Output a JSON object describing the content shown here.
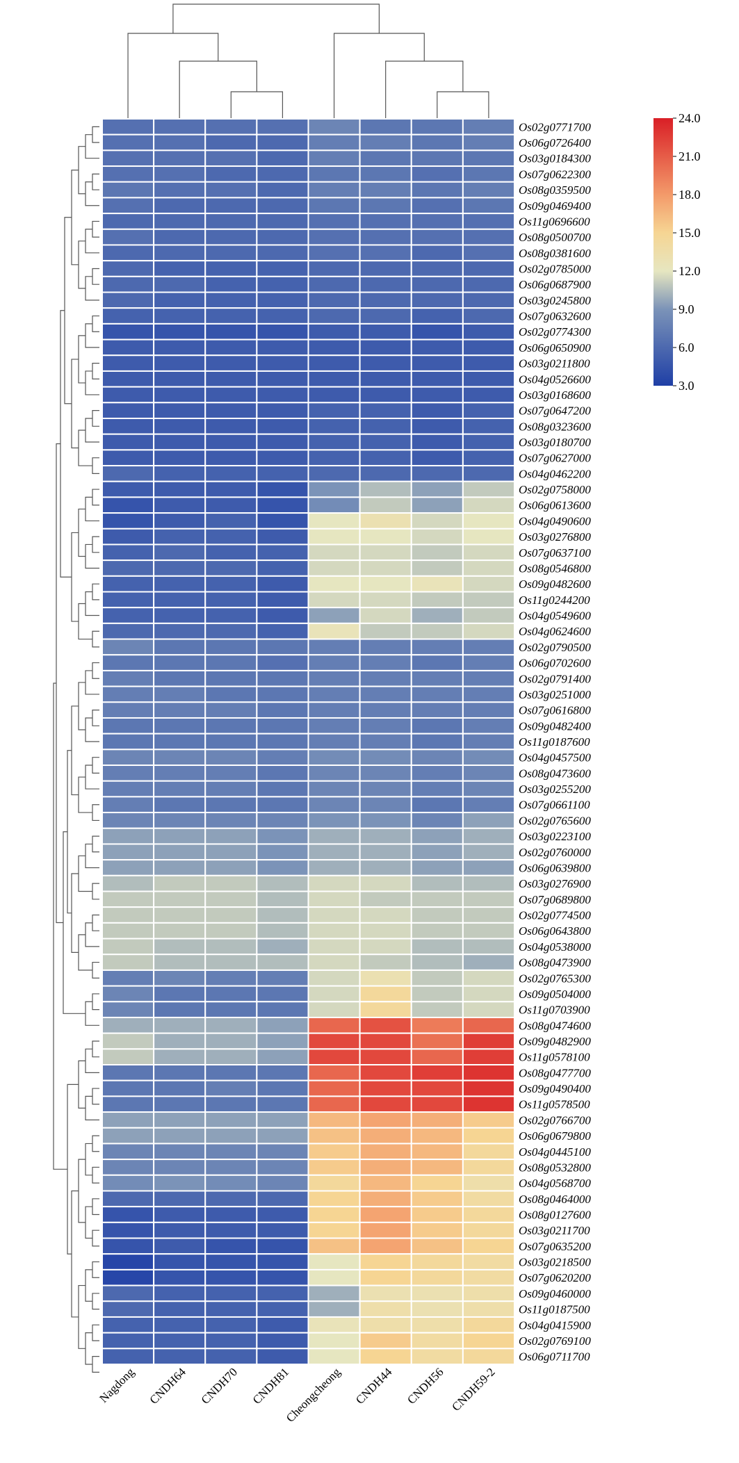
{
  "chart_data": {
    "type": "heatmap",
    "columns": [
      "Nagdong",
      "CNDH64",
      "CNDH70",
      "CNDH81",
      "Cheongcheong",
      "CNDH44",
      "CNDH56",
      "CNDH59-2"
    ],
    "rows": [
      {
        "gene": "Os02g0771700",
        "values": [
          6.5,
          6.5,
          6.5,
          6.5,
          8.0,
          7.0,
          7.0,
          7.5
        ]
      },
      {
        "gene": "Os06g0726400",
        "values": [
          6.5,
          6.5,
          6.0,
          6.0,
          7.5,
          7.5,
          7.0,
          7.5
        ]
      },
      {
        "gene": "Os03g0184300",
        "values": [
          6.5,
          6.5,
          6.5,
          6.0,
          7.5,
          7.0,
          7.0,
          7.0
        ]
      },
      {
        "gene": "Os07g0622300",
        "values": [
          6.5,
          6.5,
          6.0,
          6.0,
          7.0,
          7.0,
          6.5,
          7.0
        ]
      },
      {
        "gene": "Os08g0359500",
        "values": [
          7.0,
          6.5,
          6.5,
          6.0,
          7.5,
          7.5,
          7.0,
          7.5
        ]
      },
      {
        "gene": "Os09g0469400",
        "values": [
          6.5,
          6.0,
          6.0,
          6.0,
          7.0,
          7.0,
          6.5,
          7.0
        ]
      },
      {
        "gene": "Os11g0696600",
        "values": [
          6.0,
          6.0,
          6.0,
          6.0,
          6.5,
          6.5,
          6.5,
          6.5
        ]
      },
      {
        "gene": "Os08g0500700",
        "values": [
          6.5,
          6.0,
          6.0,
          6.0,
          6.5,
          6.5,
          6.5,
          6.5
        ]
      },
      {
        "gene": "Os08g0381600",
        "values": [
          6.0,
          6.0,
          6.0,
          6.0,
          6.5,
          6.5,
          6.0,
          6.5
        ]
      },
      {
        "gene": "Os02g0785000",
        "values": [
          6.0,
          5.5,
          5.5,
          5.5,
          6.0,
          6.0,
          6.0,
          6.0
        ]
      },
      {
        "gene": "Os06g0687900",
        "values": [
          6.0,
          6.0,
          5.5,
          5.5,
          6.0,
          6.0,
          6.0,
          6.0
        ]
      },
      {
        "gene": "Os03g0245800",
        "values": [
          6.0,
          5.5,
          5.5,
          5.5,
          6.0,
          6.0,
          6.0,
          6.0
        ]
      },
      {
        "gene": "Os07g0632600",
        "values": [
          5.5,
          5.5,
          5.5,
          5.5,
          6.0,
          6.0,
          5.5,
          6.0
        ]
      },
      {
        "gene": "Os02g0774300",
        "values": [
          4.5,
          4.5,
          4.5,
          4.5,
          5.0,
          5.0,
          4.5,
          5.0
        ]
      },
      {
        "gene": "Os06g0650900",
        "values": [
          5.0,
          5.0,
          5.0,
          5.0,
          5.0,
          5.0,
          5.0,
          5.0
        ]
      },
      {
        "gene": "Os03g0211800",
        "values": [
          5.0,
          5.0,
          5.0,
          5.0,
          5.0,
          5.0,
          5.0,
          5.0
        ]
      },
      {
        "gene": "Os04g0526600",
        "values": [
          5.0,
          5.0,
          5.0,
          5.0,
          5.0,
          5.0,
          5.0,
          5.0
        ]
      },
      {
        "gene": "Os03g0168600",
        "values": [
          5.0,
          5.0,
          5.0,
          5.0,
          5.0,
          5.0,
          5.0,
          5.0
        ]
      },
      {
        "gene": "Os07g0647200",
        "values": [
          5.0,
          5.0,
          5.0,
          5.0,
          5.5,
          5.5,
          5.0,
          5.5
        ]
      },
      {
        "gene": "Os08g0323600",
        "values": [
          5.0,
          5.0,
          5.0,
          5.0,
          5.5,
          5.5,
          5.0,
          5.5
        ]
      },
      {
        "gene": "Os03g0180700",
        "values": [
          5.0,
          5.0,
          5.0,
          5.0,
          5.5,
          5.5,
          5.0,
          5.5
        ]
      },
      {
        "gene": "Os07g0627000",
        "values": [
          5.0,
          5.0,
          5.0,
          5.0,
          5.5,
          5.5,
          5.0,
          5.5
        ]
      },
      {
        "gene": "Os04g0462200",
        "values": [
          6.0,
          5.5,
          5.5,
          5.5,
          6.0,
          6.0,
          6.0,
          6.0
        ]
      },
      {
        "gene": "Os02g0758000",
        "values": [
          5.0,
          5.0,
          5.0,
          4.5,
          9.0,
          10.5,
          9.5,
          11.0
        ]
      },
      {
        "gene": "Os06g0613600",
        "values": [
          4.5,
          5.0,
          5.0,
          4.5,
          8.5,
          11.0,
          9.5,
          11.5
        ]
      },
      {
        "gene": "Os04g0490600",
        "values": [
          4.5,
          5.0,
          5.5,
          4.5,
          12.0,
          13.0,
          11.5,
          12.0
        ]
      },
      {
        "gene": "Os03g0276800",
        "values": [
          5.0,
          5.5,
          5.5,
          5.0,
          12.0,
          12.0,
          11.5,
          12.0
        ]
      },
      {
        "gene": "Os07g0637100",
        "values": [
          5.5,
          6.0,
          5.5,
          5.5,
          11.5,
          11.5,
          11.0,
          11.5
        ]
      },
      {
        "gene": "Os08g0546800",
        "values": [
          6.0,
          6.0,
          6.0,
          5.5,
          11.5,
          11.5,
          11.0,
          11.5
        ]
      },
      {
        "gene": "Os09g0482600",
        "values": [
          5.5,
          5.5,
          5.5,
          5.0,
          12.0,
          12.0,
          12.5,
          11.5
        ]
      },
      {
        "gene": "Os11g0244200",
        "values": [
          5.5,
          5.5,
          5.5,
          5.0,
          11.5,
          11.5,
          11.0,
          11.0
        ]
      },
      {
        "gene": "Os04g0549600",
        "values": [
          5.5,
          5.5,
          5.5,
          5.0,
          9.5,
          11.5,
          10.0,
          11.0
        ]
      },
      {
        "gene": "Os04g0624600",
        "values": [
          6.0,
          6.0,
          6.0,
          5.5,
          12.5,
          11.0,
          11.0,
          11.5
        ]
      },
      {
        "gene": "Os02g0790500",
        "values": [
          8.0,
          7.0,
          7.0,
          7.0,
          7.5,
          7.5,
          7.5,
          7.5
        ]
      },
      {
        "gene": "Os06g0702600",
        "values": [
          7.0,
          7.0,
          7.0,
          6.5,
          7.5,
          7.5,
          7.0,
          7.5
        ]
      },
      {
        "gene": "Os02g0791400",
        "values": [
          7.5,
          7.0,
          7.0,
          7.0,
          7.5,
          7.5,
          7.5,
          7.5
        ]
      },
      {
        "gene": "Os03g0251000",
        "values": [
          7.5,
          7.5,
          7.0,
          7.0,
          7.5,
          7.5,
          7.5,
          7.5
        ]
      },
      {
        "gene": "Os07g0616800",
        "values": [
          7.5,
          7.5,
          7.5,
          7.0,
          7.5,
          7.5,
          7.5,
          7.5
        ]
      },
      {
        "gene": "Os09g0482400",
        "values": [
          7.0,
          7.0,
          7.0,
          7.0,
          7.5,
          7.5,
          7.0,
          7.5
        ]
      },
      {
        "gene": "Os11g0187600",
        "values": [
          7.0,
          7.0,
          7.0,
          7.0,
          7.5,
          7.5,
          7.0,
          7.5
        ]
      },
      {
        "gene": "Os04g0457500",
        "values": [
          8.0,
          8.0,
          8.0,
          7.5,
          8.5,
          8.5,
          8.0,
          8.5
        ]
      },
      {
        "gene": "Os08g0473600",
        "values": [
          7.5,
          7.5,
          7.5,
          7.0,
          8.0,
          8.0,
          7.5,
          8.0
        ]
      },
      {
        "gene": "Os03g0255200",
        "values": [
          7.5,
          7.5,
          7.5,
          7.0,
          8.0,
          8.0,
          7.5,
          8.0
        ]
      },
      {
        "gene": "Os07g0661100",
        "values": [
          7.5,
          7.0,
          7.0,
          7.0,
          8.0,
          8.0,
          7.0,
          7.5
        ]
      },
      {
        "gene": "Os02g0765600",
        "values": [
          8.0,
          8.0,
          8.0,
          8.0,
          9.0,
          9.0,
          8.0,
          9.5
        ]
      },
      {
        "gene": "Os03g0223100",
        "values": [
          9.5,
          9.5,
          9.5,
          9.0,
          10.0,
          10.0,
          9.5,
          10.0
        ]
      },
      {
        "gene": "Os02g0760000",
        "values": [
          9.5,
          9.5,
          9.5,
          9.0,
          10.0,
          10.0,
          9.5,
          10.0
        ]
      },
      {
        "gene": "Os06g0639800",
        "values": [
          9.5,
          9.5,
          9.5,
          9.0,
          10.0,
          10.0,
          9.5,
          9.5
        ]
      },
      {
        "gene": "Os03g0276900",
        "values": [
          10.5,
          11.0,
          11.0,
          10.5,
          11.5,
          11.5,
          10.5,
          10.5
        ]
      },
      {
        "gene": "Os07g0689800",
        "values": [
          11.0,
          11.0,
          11.0,
          10.5,
          11.5,
          11.0,
          11.0,
          11.0
        ]
      },
      {
        "gene": "Os02g0774500",
        "values": [
          11.0,
          11.0,
          11.0,
          10.5,
          11.5,
          11.5,
          11.0,
          11.0
        ]
      },
      {
        "gene": "Os06g0643800",
        "values": [
          11.0,
          11.0,
          11.0,
          10.5,
          11.5,
          11.5,
          11.0,
          11.0
        ]
      },
      {
        "gene": "Os04g0538000",
        "values": [
          11.0,
          10.5,
          10.5,
          10.0,
          11.5,
          11.5,
          10.5,
          10.5
        ]
      },
      {
        "gene": "Os08g0473900",
        "values": [
          11.0,
          10.5,
          10.5,
          10.5,
          11.5,
          11.0,
          10.5,
          10.0
        ]
      },
      {
        "gene": "Os02g0765300",
        "values": [
          7.5,
          8.0,
          7.5,
          7.5,
          11.5,
          13.0,
          11.0,
          11.5
        ]
      },
      {
        "gene": "Os09g0504000",
        "values": [
          8.0,
          7.0,
          7.0,
          7.0,
          11.5,
          14.5,
          11.0,
          11.5
        ]
      },
      {
        "gene": "Os11g0703900",
        "values": [
          8.0,
          7.0,
          7.0,
          7.0,
          11.5,
          14.5,
          11.0,
          11.5
        ]
      },
      {
        "gene": "Os08g0474600",
        "values": [
          10.0,
          10.0,
          10.0,
          9.5,
          20.5,
          21.5,
          19.5,
          20.5
        ]
      },
      {
        "gene": "Os09g0482900",
        "values": [
          11.0,
          10.0,
          10.0,
          9.5,
          22.0,
          22.0,
          20.0,
          22.5
        ]
      },
      {
        "gene": "Os11g0578100",
        "values": [
          11.0,
          10.0,
          10.0,
          9.5,
          22.0,
          22.0,
          20.5,
          22.5
        ]
      },
      {
        "gene": "Os08g0477700",
        "values": [
          7.0,
          7.0,
          7.0,
          7.0,
          20.5,
          22.0,
          22.5,
          23.0
        ]
      },
      {
        "gene": "Os09g0490400",
        "values": [
          7.0,
          7.0,
          7.5,
          7.0,
          20.5,
          22.0,
          22.0,
          23.0
        ]
      },
      {
        "gene": "Os11g0578500",
        "values": [
          7.0,
          7.0,
          7.0,
          7.0,
          20.5,
          22.0,
          22.0,
          23.0
        ]
      },
      {
        "gene": "Os02g0766700",
        "values": [
          9.5,
          9.5,
          9.5,
          9.5,
          16.5,
          17.5,
          17.0,
          15.5
        ]
      },
      {
        "gene": "Os06g0679800",
        "values": [
          9.5,
          9.5,
          9.5,
          9.5,
          16.0,
          17.0,
          16.5,
          15.0
        ]
      },
      {
        "gene": "Os04g0445100",
        "values": [
          8.0,
          8.0,
          8.0,
          8.0,
          15.5,
          17.0,
          16.5,
          14.5
        ]
      },
      {
        "gene": "Os08g0532800",
        "values": [
          8.0,
          8.0,
          8.0,
          8.0,
          15.5,
          17.0,
          16.5,
          14.5
        ]
      },
      {
        "gene": "Os04g0568700",
        "values": [
          8.5,
          9.0,
          8.5,
          8.0,
          14.5,
          16.5,
          15.0,
          13.5
        ]
      },
      {
        "gene": "Os08g0464000",
        "values": [
          6.0,
          6.0,
          6.0,
          6.0,
          15.0,
          17.0,
          15.5,
          14.0
        ]
      },
      {
        "gene": "Os08g0127600",
        "values": [
          4.5,
          5.0,
          5.0,
          5.0,
          15.0,
          17.5,
          15.5,
          14.5
        ]
      },
      {
        "gene": "Os03g0211700",
        "values": [
          4.5,
          5.0,
          5.0,
          5.0,
          15.0,
          17.5,
          15.5,
          14.5
        ]
      },
      {
        "gene": "Os07g0635200",
        "values": [
          4.5,
          5.0,
          4.5,
          4.5,
          16.0,
          17.5,
          16.0,
          15.0
        ]
      },
      {
        "gene": "Os03g0218500",
        "values": [
          3.5,
          4.5,
          4.5,
          4.5,
          12.0,
          15.0,
          14.5,
          14.0
        ]
      },
      {
        "gene": "Os07g0620200",
        "values": [
          3.5,
          4.5,
          4.5,
          4.5,
          12.0,
          15.0,
          14.5,
          14.0
        ]
      },
      {
        "gene": "Os09g0460000",
        "values": [
          6.0,
          5.5,
          5.5,
          5.5,
          10.0,
          13.0,
          13.0,
          13.5
        ]
      },
      {
        "gene": "Os11g0187500",
        "values": [
          6.0,
          5.5,
          5.5,
          5.5,
          10.0,
          13.5,
          13.0,
          13.5
        ]
      },
      {
        "gene": "Os04g0415900",
        "values": [
          5.5,
          5.5,
          5.5,
          5.0,
          12.5,
          13.5,
          13.5,
          14.5
        ]
      },
      {
        "gene": "Os02g0769100",
        "values": [
          5.5,
          5.5,
          5.5,
          5.0,
          12.0,
          15.5,
          14.0,
          15.0
        ]
      },
      {
        "gene": "Os06g0711700",
        "values": [
          5.5,
          5.5,
          5.5,
          5.0,
          12.0,
          15.0,
          14.0,
          14.5
        ]
      }
    ],
    "color_scale": {
      "min": 3.0,
      "max": 24.0,
      "ticks": [
        "24.0",
        "21.0",
        "18.0",
        "15.0",
        "12.0",
        "9.0",
        "6.0",
        "3.0"
      ],
      "stops": [
        {
          "value": 3.0,
          "color": "#1f3fa6"
        },
        {
          "value": 9.0,
          "color": "#7b93b8"
        },
        {
          "value": 12.0,
          "color": "#e6e6c0"
        },
        {
          "value": 15.0,
          "color": "#f6d593"
        },
        {
          "value": 18.0,
          "color": "#f39a6a"
        },
        {
          "value": 24.0,
          "color": "#d91f26"
        }
      ]
    },
    "column_dendrogram": true,
    "row_dendrogram": true,
    "legend_position": "top-right"
  }
}
